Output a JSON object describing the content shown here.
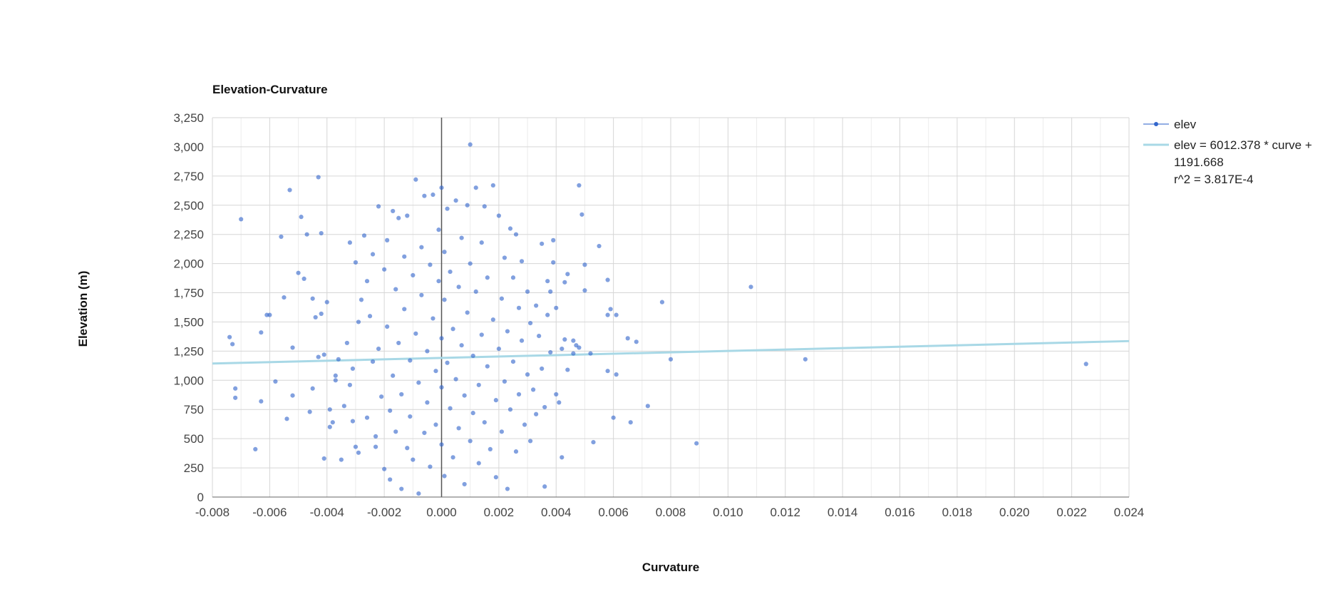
{
  "chart_data": {
    "type": "scatter",
    "title": "Elevation-Curvature",
    "xlabel": "Curvature",
    "ylabel": "Elevation (m)",
    "xlim": [
      -0.008,
      0.024
    ],
    "ylim": [
      0,
      3250
    ],
    "x_ticks": [
      "-0.008",
      "-0.006",
      "-0.004",
      "-0.002",
      "0.000",
      "0.002",
      "0.004",
      "0.006",
      "0.008",
      "0.010",
      "0.012",
      "0.014",
      "0.016",
      "0.018",
      "0.020",
      "0.022",
      "0.024"
    ],
    "y_ticks": [
      "0",
      "250",
      "500",
      "750",
      "1,000",
      "1,250",
      "1,500",
      "1,750",
      "2,000",
      "2,250",
      "2,500",
      "2,750",
      "3,000",
      "3,250"
    ],
    "grid": true,
    "legend_position": "right",
    "colors": {
      "points": "#3366cc",
      "trendline": "#a8d8e6",
      "grid": "#d6d6d6",
      "zero_line": "#555555"
    },
    "series": [
      {
        "name": "elev",
        "points": [
          [
            -0.0074,
            1370
          ],
          [
            -0.0073,
            1310
          ],
          [
            -0.0072,
            930
          ],
          [
            -0.0072,
            850
          ],
          [
            -0.007,
            2380
          ],
          [
            -0.0065,
            410
          ],
          [
            -0.0063,
            1410
          ],
          [
            -0.0063,
            820
          ],
          [
            -0.0061,
            1560
          ],
          [
            -0.006,
            1560
          ],
          [
            -0.0058,
            990
          ],
          [
            -0.0056,
            2230
          ],
          [
            -0.0055,
            1710
          ],
          [
            -0.0054,
            670
          ],
          [
            -0.0053,
            2630
          ],
          [
            -0.0052,
            1280
          ],
          [
            -0.0052,
            870
          ],
          [
            -0.005,
            1920
          ],
          [
            -0.0049,
            2400
          ],
          [
            -0.0048,
            1870
          ],
          [
            -0.0047,
            2250
          ],
          [
            -0.0046,
            730
          ],
          [
            -0.0045,
            1700
          ],
          [
            -0.0045,
            930
          ],
          [
            -0.0044,
            1540
          ],
          [
            -0.0043,
            2740
          ],
          [
            -0.0043,
            1200
          ],
          [
            -0.0042,
            2260
          ],
          [
            -0.0042,
            1570
          ],
          [
            -0.0041,
            330
          ],
          [
            -0.0041,
            1220
          ],
          [
            -0.004,
            1670
          ],
          [
            -0.0039,
            750
          ],
          [
            -0.0039,
            600
          ],
          [
            -0.0038,
            640
          ],
          [
            -0.0037,
            1000
          ],
          [
            -0.0037,
            1040
          ],
          [
            -0.0036,
            1180
          ],
          [
            -0.0035,
            320
          ],
          [
            -0.0034,
            780
          ],
          [
            -0.0033,
            1320
          ],
          [
            -0.0032,
            960
          ],
          [
            -0.0032,
            2180
          ],
          [
            -0.0031,
            650
          ],
          [
            -0.0031,
            1100
          ],
          [
            -0.003,
            430
          ],
          [
            -0.003,
            2010
          ],
          [
            -0.0029,
            1500
          ],
          [
            -0.0029,
            380
          ],
          [
            -0.0028,
            1690
          ],
          [
            -0.0027,
            2240
          ],
          [
            -0.0026,
            680
          ],
          [
            -0.0026,
            1850
          ],
          [
            -0.0025,
            1550
          ],
          [
            -0.0024,
            2080
          ],
          [
            -0.0024,
            1160
          ],
          [
            -0.0023,
            520
          ],
          [
            -0.0023,
            430
          ],
          [
            -0.0022,
            2490
          ],
          [
            -0.0022,
            1270
          ],
          [
            -0.0021,
            860
          ],
          [
            -0.002,
            1950
          ],
          [
            -0.002,
            240
          ],
          [
            -0.0019,
            2200
          ],
          [
            -0.0019,
            1460
          ],
          [
            -0.0018,
            740
          ],
          [
            -0.0018,
            150
          ],
          [
            -0.0017,
            2450
          ],
          [
            -0.0017,
            1040
          ],
          [
            -0.0016,
            1780
          ],
          [
            -0.0016,
            560
          ],
          [
            -0.0015,
            2390
          ],
          [
            -0.0015,
            1320
          ],
          [
            -0.0014,
            880
          ],
          [
            -0.0014,
            70
          ],
          [
            -0.0013,
            2060
          ],
          [
            -0.0013,
            1610
          ],
          [
            -0.0012,
            420
          ],
          [
            -0.0012,
            2410
          ],
          [
            -0.0011,
            1170
          ],
          [
            -0.0011,
            690
          ],
          [
            -0.001,
            1900
          ],
          [
            -0.001,
            320
          ],
          [
            -0.0009,
            2720
          ],
          [
            -0.0009,
            1400
          ],
          [
            -0.0008,
            980
          ],
          [
            -0.0008,
            30
          ],
          [
            -0.0007,
            2140
          ],
          [
            -0.0007,
            1730
          ],
          [
            -0.0006,
            550
          ],
          [
            -0.0006,
            2580
          ],
          [
            -0.0005,
            1250
          ],
          [
            -0.0005,
            810
          ],
          [
            -0.0004,
            1990
          ],
          [
            -0.0004,
            260
          ],
          [
            -0.0003,
            2590
          ],
          [
            -0.0003,
            1530
          ],
          [
            -0.0002,
            1080
          ],
          [
            -0.0002,
            620
          ],
          [
            -0.0001,
            2290
          ],
          [
            -0.0001,
            1850
          ],
          [
            0.0,
            2650
          ],
          [
            0.0,
            1360
          ],
          [
            0.0,
            940
          ],
          [
            0.0,
            450
          ],
          [
            0.0001,
            2100
          ],
          [
            0.0001,
            1690
          ],
          [
            0.0001,
            180
          ],
          [
            0.0002,
            1150
          ],
          [
            0.0002,
            2470
          ],
          [
            0.0003,
            760
          ],
          [
            0.0003,
            1930
          ],
          [
            0.0004,
            1440
          ],
          [
            0.0004,
            340
          ],
          [
            0.0005,
            2540
          ],
          [
            0.0005,
            1010
          ],
          [
            0.0006,
            1800
          ],
          [
            0.0006,
            590
          ],
          [
            0.0007,
            2220
          ],
          [
            0.0007,
            1300
          ],
          [
            0.0008,
            870
          ],
          [
            0.0008,
            110
          ],
          [
            0.0009,
            2500
          ],
          [
            0.0009,
            1580
          ],
          [
            0.001,
            480
          ],
          [
            0.001,
            2000
          ],
          [
            0.001,
            3020
          ],
          [
            0.0011,
            1210
          ],
          [
            0.0011,
            720
          ],
          [
            0.0012,
            2650
          ],
          [
            0.0012,
            1760
          ],
          [
            0.0013,
            960
          ],
          [
            0.0013,
            290
          ],
          [
            0.0014,
            2180
          ],
          [
            0.0014,
            1390
          ],
          [
            0.0015,
            640
          ],
          [
            0.0015,
            2490
          ],
          [
            0.0016,
            1120
          ],
          [
            0.0016,
            1880
          ],
          [
            0.0017,
            410
          ],
          [
            0.0018,
            2670
          ],
          [
            0.0018,
            1520
          ],
          [
            0.0019,
            830
          ],
          [
            0.0019,
            170
          ],
          [
            0.002,
            2410
          ],
          [
            0.002,
            1270
          ],
          [
            0.0021,
            1700
          ],
          [
            0.0021,
            560
          ],
          [
            0.0022,
            2050
          ],
          [
            0.0022,
            990
          ],
          [
            0.0023,
            1420
          ],
          [
            0.0023,
            70
          ],
          [
            0.0024,
            2300
          ],
          [
            0.0024,
            750
          ],
          [
            0.0025,
            1880
          ],
          [
            0.0025,
            1160
          ],
          [
            0.0026,
            390
          ],
          [
            0.0026,
            2250
          ],
          [
            0.0027,
            1620
          ],
          [
            0.0027,
            880
          ],
          [
            0.0028,
            2020
          ],
          [
            0.0028,
            1340
          ],
          [
            0.0029,
            620
          ],
          [
            0.003,
            1760
          ],
          [
            0.003,
            1050
          ],
          [
            0.0031,
            480
          ],
          [
            0.0031,
            1490
          ],
          [
            0.0032,
            920
          ],
          [
            0.0033,
            1640
          ],
          [
            0.0033,
            710
          ],
          [
            0.0034,
            1380
          ],
          [
            0.0035,
            2170
          ],
          [
            0.0035,
            1100
          ],
          [
            0.0036,
            770
          ],
          [
            0.0036,
            90
          ],
          [
            0.0037,
            1850
          ],
          [
            0.0037,
            1560
          ],
          [
            0.0038,
            1760
          ],
          [
            0.0038,
            1240
          ],
          [
            0.0039,
            2200
          ],
          [
            0.0039,
            2010
          ],
          [
            0.004,
            880
          ],
          [
            0.004,
            1620
          ],
          [
            0.0041,
            810
          ],
          [
            0.0042,
            1270
          ],
          [
            0.0042,
            340
          ],
          [
            0.0043,
            1840
          ],
          [
            0.0043,
            1350
          ],
          [
            0.0044,
            1910
          ],
          [
            0.0044,
            1090
          ],
          [
            0.0046,
            1340
          ],
          [
            0.0046,
            1230
          ],
          [
            0.0047,
            1300
          ],
          [
            0.0048,
            2670
          ],
          [
            0.0048,
            1280
          ],
          [
            0.0049,
            2420
          ],
          [
            0.005,
            1990
          ],
          [
            0.005,
            1770
          ],
          [
            0.0052,
            1230
          ],
          [
            0.0053,
            470
          ],
          [
            0.0055,
            2150
          ],
          [
            0.0058,
            1860
          ],
          [
            0.0058,
            1560
          ],
          [
            0.0058,
            1080
          ],
          [
            0.0059,
            1610
          ],
          [
            0.006,
            680
          ],
          [
            0.0061,
            1560
          ],
          [
            0.0061,
            1050
          ],
          [
            0.0065,
            1360
          ],
          [
            0.0066,
            640
          ],
          [
            0.0068,
            1330
          ],
          [
            0.0072,
            780
          ],
          [
            0.0077,
            1670
          ],
          [
            0.008,
            1180
          ],
          [
            0.0089,
            460
          ],
          [
            0.0108,
            1800
          ],
          [
            0.0127,
            1180
          ],
          [
            0.0225,
            1140
          ]
        ]
      },
      {
        "name": "elev = 6012.378 * curve + 1191.668",
        "r2_label": "r^2 = 3.817E-4",
        "slope": 6012.378,
        "intercept": 1191.668
      }
    ],
    "legend": {
      "scatter_label": "elev",
      "trend_label_line1": "elev = 6012.378 * curve +",
      "trend_label_line2": "1191.668",
      "trend_label_line3": "r^2 = 3.817E-4"
    }
  }
}
